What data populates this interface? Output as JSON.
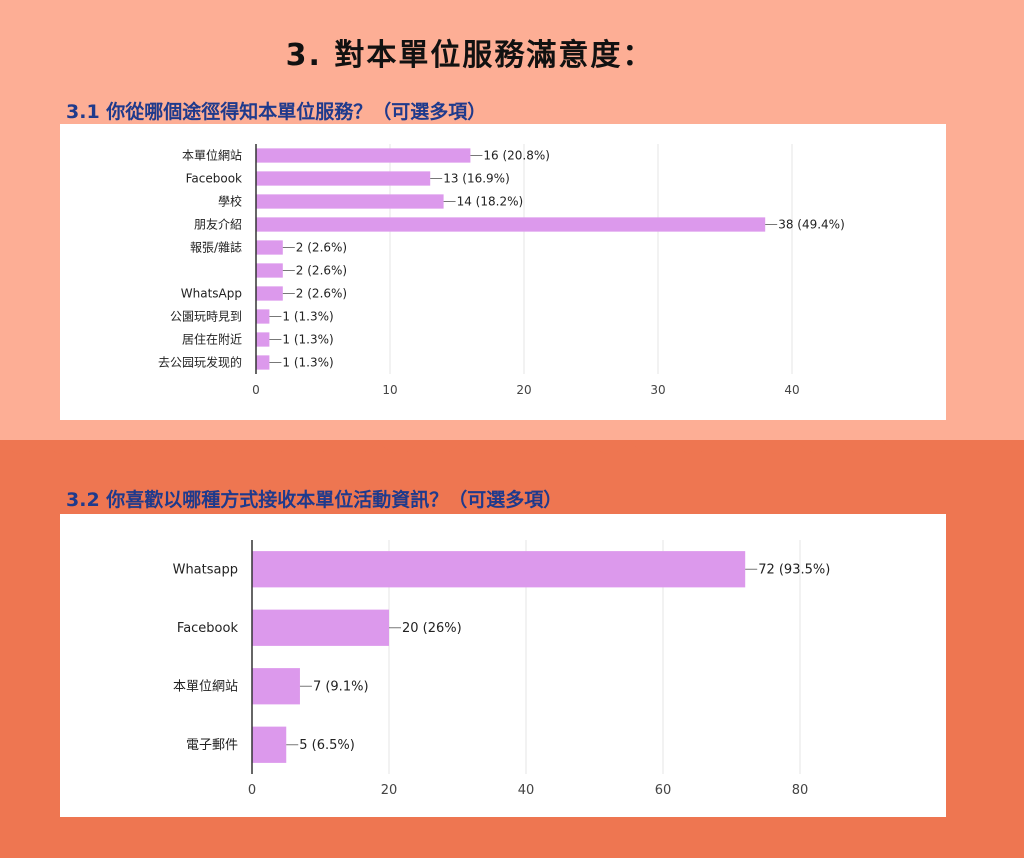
{
  "page": {
    "title": "3. 對本單位服務滿意度：",
    "colors": {
      "top_background": "#FDAE95",
      "bottom_background": "#EE7651",
      "heading": "#1F3A8C",
      "bar": "#DC99EC",
      "gridline": "#E6E6E6",
      "panel": "#FFFFFF"
    }
  },
  "chart_data": [
    {
      "type": "bar",
      "orientation": "horizontal",
      "title": "3.1 你從哪個途徑得知本單位服務？（可選多項）",
      "categories": [
        "本單位網站",
        "Facebook",
        "學校",
        "朋友介紹",
        "報張/雜誌",
        "",
        "WhatsApp",
        "公園玩時見到",
        "居住在附近",
        "去公园玩发现的"
      ],
      "values": [
        16,
        13,
        14,
        38,
        2,
        2,
        2,
        1,
        1,
        1
      ],
      "value_labels": [
        "16 (20.8%)",
        "13 (16.9%)",
        "14 (18.2%)",
        "38 (49.4%)",
        "2 (2.6%)",
        "2 (2.6%)",
        "2 (2.6%)",
        "1 (1.3%)",
        "1 (1.3%)",
        "1 (1.3%)"
      ],
      "xlim": [
        0,
        40
      ],
      "xticks": [
        0,
        10,
        20,
        30,
        40
      ],
      "grid": true
    },
    {
      "type": "bar",
      "orientation": "horizontal",
      "title": "3.2 你喜歡以哪種方式接收本單位活動資訊？（可選多項）",
      "categories": [
        "Whatsapp",
        "Facebook",
        "本單位網站",
        "電子郵件"
      ],
      "values": [
        72,
        20,
        7,
        5
      ],
      "value_labels": [
        "72 (93.5%)",
        "20 (26%)",
        "7 (9.1%)",
        "5 (6.5%)"
      ],
      "xlim": [
        0,
        80
      ],
      "xticks": [
        0,
        20,
        40,
        60,
        80
      ],
      "grid": true
    }
  ]
}
